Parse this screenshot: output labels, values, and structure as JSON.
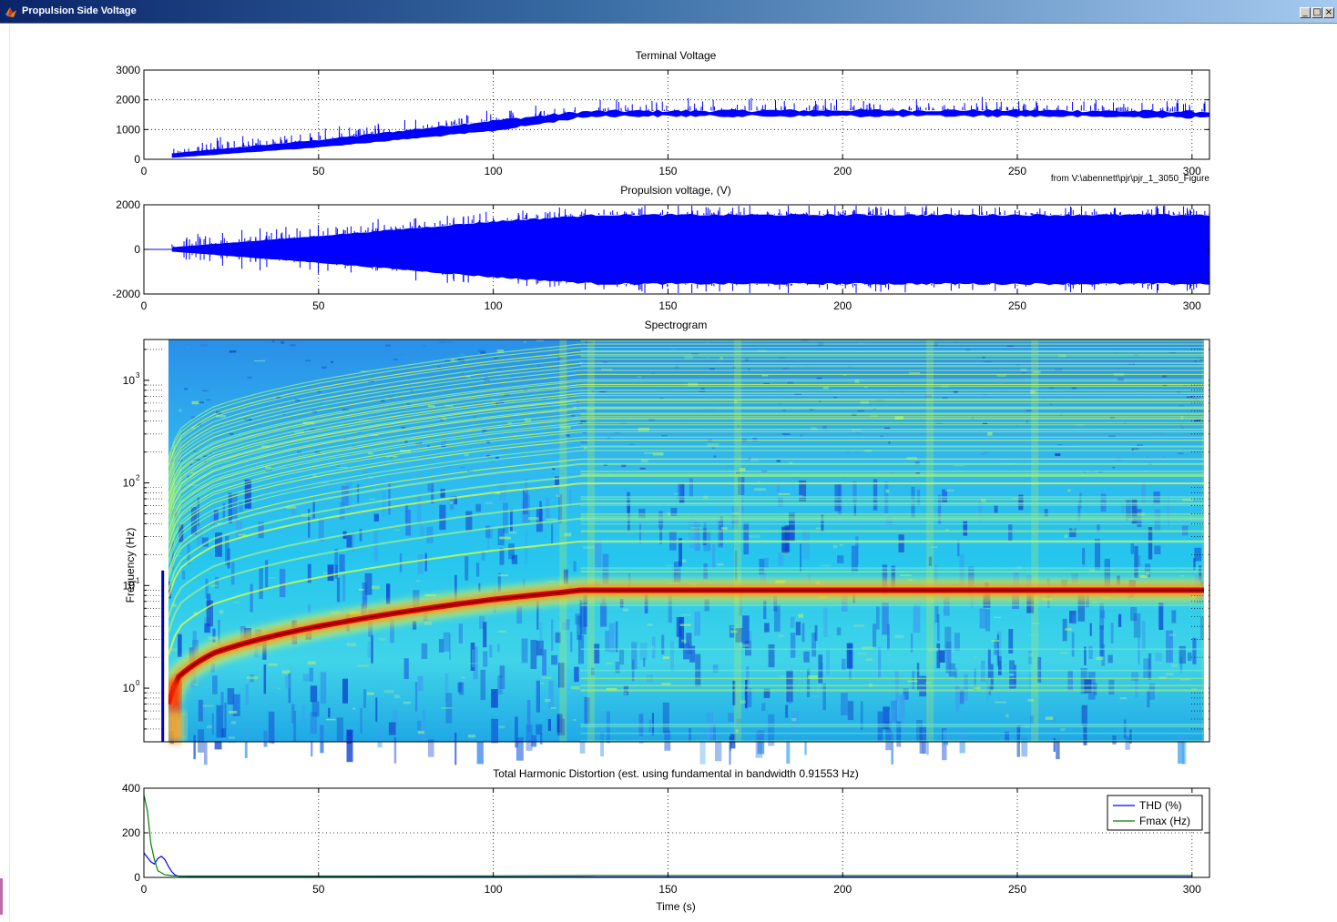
{
  "window": {
    "title": "Propulsion Side Voltage",
    "buttons": {
      "minimize": "_",
      "maximize": "□",
      "close": "×"
    },
    "icon": "matlab-icon"
  },
  "colors": {
    "signal": "#0000ff",
    "thd": "#0000ff",
    "fmax": "#008000",
    "axes": "#000000",
    "grid": "#000000",
    "titlebar_start": "#0a246a",
    "titlebar_end": "#a6caf0"
  },
  "chart_data": [
    {
      "type": "area",
      "title": "Terminal Voltage",
      "xlabel": "",
      "ylabel": "",
      "xlim": [
        0,
        305
      ],
      "ylim": [
        0,
        3000
      ],
      "xticks": [
        "0",
        "50",
        "100",
        "150",
        "200",
        "250",
        "300"
      ],
      "yticks": [
        "0",
        "1000",
        "2000",
        "3000"
      ],
      "grid": true,
      "annotation": "from V:\\abennett\\pjr\\pjr_1_3050_Figure",
      "envelope": {
        "x": [
          8,
          50,
          100,
          125,
          130,
          200,
          250,
          305
        ],
        "upper": [
          200,
          650,
          1300,
          1600,
          1620,
          1650,
          1650,
          1600
        ],
        "lower": [
          50,
          400,
          950,
          1400,
          1450,
          1450,
          1450,
          1400
        ]
      }
    },
    {
      "type": "area",
      "title": "Propulsion voltage, (V)",
      "xlabel": "",
      "ylabel": "",
      "xlim": [
        0,
        305
      ],
      "ylim": [
        -2000,
        2000
      ],
      "xticks": [
        "0",
        "50",
        "100",
        "150",
        "200",
        "250",
        "300"
      ],
      "yticks": [
        "-2000",
        "0",
        "2000"
      ],
      "grid": true,
      "envelope": {
        "x": [
          8,
          50,
          100,
          125,
          130,
          200,
          250,
          305
        ],
        "upper": [
          100,
          600,
          1250,
          1500,
          1550,
          1550,
          1550,
          1550
        ],
        "lower": [
          -100,
          -600,
          -1250,
          -1500,
          -1550,
          -1550,
          -1550,
          -1550
        ]
      }
    },
    {
      "type": "heatmap",
      "title": "Spectrogram",
      "xlabel": "",
      "ylabel": "Frequency (Hz)",
      "yscale": "log",
      "xlim": [
        0,
        305
      ],
      "ylim": [
        0.3,
        2500
      ],
      "ytick_values": [
        "10",
        "10",
        "10",
        "10"
      ],
      "ytick_exponents": [
        "0",
        "1",
        "2",
        "3"
      ],
      "grid": true,
      "fundamental_ridge": {
        "x": [
          7,
          10,
          20,
          40,
          60,
          80,
          100,
          120,
          125,
          200,
          305
        ],
        "freq": [
          0.7,
          1.3,
          2.2,
          3.4,
          4.6,
          5.9,
          7.3,
          8.6,
          9.0,
          9.0,
          9.0
        ]
      },
      "colormap": [
        "#00008f",
        "#0000ff",
        "#00ffff",
        "#ffff00",
        "#ff0000",
        "#800000"
      ]
    },
    {
      "type": "line",
      "title": "Total Harmonic Distortion (est. using fundamental in bandwidth 0.91553 Hz)",
      "xlabel": "Time (s)",
      "ylabel": "",
      "xlim": [
        0,
        305
      ],
      "ylim": [
        0,
        400
      ],
      "xticks": [
        "0",
        "50",
        "100",
        "150",
        "200",
        "250",
        "300"
      ],
      "yticks": [
        "0",
        "200",
        "400"
      ],
      "grid": true,
      "legend_position": "top-right",
      "series": [
        {
          "name": "THD (%)",
          "x": [
            0,
            1,
            2,
            3,
            4,
            5,
            6,
            7,
            8,
            9,
            10,
            12,
            15,
            20,
            300
          ],
          "y": [
            110,
            90,
            70,
            60,
            85,
            95,
            80,
            50,
            25,
            10,
            5,
            5,
            3,
            2,
            2
          ]
        },
        {
          "name": "Fmax (Hz)",
          "x": [
            0,
            1,
            2,
            3,
            4,
            6,
            8,
            10,
            50,
            100,
            125,
            130,
            200,
            300
          ],
          "y": [
            370,
            300,
            150,
            80,
            30,
            12,
            8,
            6,
            6,
            7,
            8,
            9,
            9,
            9
          ]
        }
      ]
    }
  ]
}
